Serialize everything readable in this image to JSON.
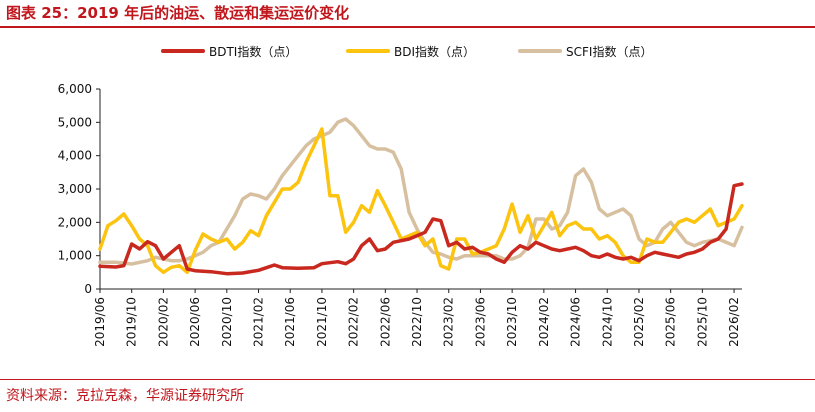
{
  "header": {
    "title": "图表 25：2019 年后的油运、散运和集运运价变化"
  },
  "footer": {
    "source": "资料来源：克拉克森，华源证券研究所"
  },
  "colors": {
    "accent": "#c0161c"
  },
  "chart_data": {
    "type": "line",
    "title": "",
    "xlabel": "",
    "ylabel": "",
    "ylim": [
      0,
      6000
    ],
    "y_ticks": [
      "0",
      "1,000",
      "2,000",
      "3,000",
      "4,000",
      "5,000",
      "6,000"
    ],
    "y_tick_values": [
      0,
      1000,
      2000,
      3000,
      4000,
      5000,
      6000
    ],
    "x_ticks": [
      "2019/06",
      "2019/10",
      "2020/02",
      "2020/06",
      "2020/10",
      "2021/02",
      "2021/06",
      "2021/10",
      "2022/02",
      "2022/06",
      "2022/10",
      "2023/02",
      "2023/06",
      "2023/10",
      "2024/02",
      "2024/06",
      "2024/10",
      "2025/02",
      "2025/06",
      "2025/10",
      "2026/02"
    ],
    "x_start": "2019/06",
    "x_end": "2026/03",
    "grid": false,
    "legend": "top",
    "series": [
      {
        "name": "BDTI指数（点）",
        "color": "#c8281e",
        "points": [
          [
            "2019/06",
            680
          ],
          [
            "2019/08",
            660
          ],
          [
            "2019/09",
            700
          ],
          [
            "2019/10",
            1350
          ],
          [
            "2019/11",
            1200
          ],
          [
            "2019/12",
            1420
          ],
          [
            "2020/01",
            1300
          ],
          [
            "2020/02",
            900
          ],
          [
            "2020/03",
            1100
          ],
          [
            "2020/04",
            1300
          ],
          [
            "2020/05",
            600
          ],
          [
            "2020/06",
            550
          ],
          [
            "2020/08",
            520
          ],
          [
            "2020/10",
            460
          ],
          [
            "2020/12",
            480
          ],
          [
            "2021/02",
            560
          ],
          [
            "2021/03",
            640
          ],
          [
            "2021/04",
            720
          ],
          [
            "2021/05",
            640
          ],
          [
            "2021/07",
            620
          ],
          [
            "2021/09",
            640
          ],
          [
            "2021/10",
            760
          ],
          [
            "2021/12",
            820
          ],
          [
            "2022/01",
            760
          ],
          [
            "2022/02",
            900
          ],
          [
            "2022/03",
            1300
          ],
          [
            "2022/04",
            1500
          ],
          [
            "2022/05",
            1150
          ],
          [
            "2022/06",
            1200
          ],
          [
            "2022/07",
            1400
          ],
          [
            "2022/09",
            1500
          ],
          [
            "2022/10",
            1600
          ],
          [
            "2022/11",
            1700
          ],
          [
            "2022/12",
            2100
          ],
          [
            "2023/01",
            2050
          ],
          [
            "2023/02",
            1300
          ],
          [
            "2023/03",
            1400
          ],
          [
            "2023/04",
            1200
          ],
          [
            "2023/05",
            1250
          ],
          [
            "2023/06",
            1100
          ],
          [
            "2023/07",
            1050
          ],
          [
            "2023/08",
            900
          ],
          [
            "2023/09",
            800
          ],
          [
            "2023/10",
            1100
          ],
          [
            "2023/11",
            1300
          ],
          [
            "2023/12",
            1200
          ],
          [
            "2024/01",
            1400
          ],
          [
            "2024/02",
            1300
          ],
          [
            "2024/03",
            1200
          ],
          [
            "2024/04",
            1150
          ],
          [
            "2024/05",
            1200
          ],
          [
            "2024/06",
            1250
          ],
          [
            "2024/07",
            1150
          ],
          [
            "2024/08",
            1000
          ],
          [
            "2024/09",
            950
          ],
          [
            "2024/10",
            1050
          ],
          [
            "2024/11",
            950
          ],
          [
            "2024/12",
            900
          ],
          [
            "2025/01",
            950
          ],
          [
            "2025/02",
            850
          ],
          [
            "2025/03",
            1000
          ],
          [
            "2025/04",
            1100
          ],
          [
            "2025/05",
            1050
          ],
          [
            "2025/06",
            1000
          ],
          [
            "2025/07",
            950
          ],
          [
            "2025/08",
            1050
          ],
          [
            "2025/09",
            1100
          ],
          [
            "2025/10",
            1200
          ],
          [
            "2025/11",
            1400
          ],
          [
            "2025/12",
            1500
          ],
          [
            "2026/01",
            1800
          ],
          [
            "2026/02",
            3100
          ],
          [
            "2026/03",
            3150
          ]
        ]
      },
      {
        "name": "BDI指数（点）",
        "color": "#fcc30f",
        "points": [
          [
            "2019/06",
            1200
          ],
          [
            "2019/07",
            1900
          ],
          [
            "2019/08",
            2050
          ],
          [
            "2019/09",
            2250
          ],
          [
            "2019/10",
            1900
          ],
          [
            "2019/11",
            1500
          ],
          [
            "2019/12",
            1300
          ],
          [
            "2020/01",
            700
          ],
          [
            "2020/02",
            500
          ],
          [
            "2020/03",
            650
          ],
          [
            "2020/04",
            700
          ],
          [
            "2020/05",
            500
          ],
          [
            "2020/06",
            1150
          ],
          [
            "2020/07",
            1650
          ],
          [
            "2020/08",
            1500
          ],
          [
            "2020/09",
            1400
          ],
          [
            "2020/10",
            1500
          ],
          [
            "2020/11",
            1200
          ],
          [
            "2020/12",
            1400
          ],
          [
            "2021/01",
            1750
          ],
          [
            "2021/02",
            1600
          ],
          [
            "2021/03",
            2200
          ],
          [
            "2021/04",
            2600
          ],
          [
            "2021/05",
            3000
          ],
          [
            "2021/06",
            3000
          ],
          [
            "2021/07",
            3200
          ],
          [
            "2021/08",
            3800
          ],
          [
            "2021/09",
            4300
          ],
          [
            "2021/10",
            4800
          ],
          [
            "2021/11",
            2800
          ],
          [
            "2021/12",
            2800
          ],
          [
            "2022/01",
            1700
          ],
          [
            "2022/02",
            2000
          ],
          [
            "2022/03",
            2500
          ],
          [
            "2022/04",
            2300
          ],
          [
            "2022/05",
            2950
          ],
          [
            "2022/06",
            2500
          ],
          [
            "2022/07",
            2000
          ],
          [
            "2022/08",
            1500
          ],
          [
            "2022/09",
            1600
          ],
          [
            "2022/10",
            1700
          ],
          [
            "2022/11",
            1300
          ],
          [
            "2022/12",
            1500
          ],
          [
            "2023/01",
            700
          ],
          [
            "2023/02",
            600
          ],
          [
            "2023/03",
            1500
          ],
          [
            "2023/04",
            1500
          ],
          [
            "2023/05",
            1050
          ],
          [
            "2023/06",
            1100
          ],
          [
            "2023/07",
            1200
          ],
          [
            "2023/08",
            1300
          ],
          [
            "2023/09",
            1800
          ],
          [
            "2023/10",
            2550
          ],
          [
            "2023/11",
            1700
          ],
          [
            "2023/12",
            2200
          ],
          [
            "2024/01",
            1500
          ],
          [
            "2024/02",
            1900
          ],
          [
            "2024/03",
            2300
          ],
          [
            "2024/04",
            1600
          ],
          [
            "2024/05",
            1900
          ],
          [
            "2024/06",
            2000
          ],
          [
            "2024/07",
            1800
          ],
          [
            "2024/08",
            1800
          ],
          [
            "2024/09",
            1500
          ],
          [
            "2024/10",
            1600
          ],
          [
            "2024/11",
            1400
          ],
          [
            "2024/12",
            1000
          ],
          [
            "2025/01",
            800
          ],
          [
            "2025/02",
            800
          ],
          [
            "2025/03",
            1500
          ],
          [
            "2025/04",
            1400
          ],
          [
            "2025/05",
            1400
          ],
          [
            "2025/06",
            1700
          ],
          [
            "2025/07",
            2000
          ],
          [
            "2025/08",
            2100
          ],
          [
            "2025/09",
            2000
          ],
          [
            "2025/10",
            2200
          ],
          [
            "2025/11",
            2400
          ],
          [
            "2025/12",
            1900
          ],
          [
            "2026/01",
            2000
          ],
          [
            "2026/02",
            2100
          ],
          [
            "2026/03",
            2500
          ]
        ]
      },
      {
        "name": "SCFI指数（点）",
        "color": "#d7c09f",
        "points": [
          [
            "2019/06",
            800
          ],
          [
            "2019/08",
            800
          ],
          [
            "2019/10",
            750
          ],
          [
            "2019/12",
            850
          ],
          [
            "2020/01",
            950
          ],
          [
            "2020/02",
            900
          ],
          [
            "2020/03",
            850
          ],
          [
            "2020/04",
            850
          ],
          [
            "2020/05",
            900
          ],
          [
            "2020/06",
            1000
          ],
          [
            "2020/07",
            1100
          ],
          [
            "2020/08",
            1300
          ],
          [
            "2020/09",
            1400
          ],
          [
            "2020/10",
            1800
          ],
          [
            "2020/11",
            2200
          ],
          [
            "2020/12",
            2700
          ],
          [
            "2021/01",
            2850
          ],
          [
            "2021/02",
            2800
          ],
          [
            "2021/03",
            2700
          ],
          [
            "2021/04",
            3000
          ],
          [
            "2021/05",
            3400
          ],
          [
            "2021/06",
            3700
          ],
          [
            "2021/07",
            4000
          ],
          [
            "2021/08",
            4300
          ],
          [
            "2021/09",
            4500
          ],
          [
            "2021/10",
            4600
          ],
          [
            "2021/11",
            4700
          ],
          [
            "2021/12",
            5000
          ],
          [
            "2022/01",
            5100
          ],
          [
            "2022/02",
            4900
          ],
          [
            "2022/03",
            4600
          ],
          [
            "2022/04",
            4300
          ],
          [
            "2022/05",
            4200
          ],
          [
            "2022/06",
            4200
          ],
          [
            "2022/07",
            4100
          ],
          [
            "2022/08",
            3600
          ],
          [
            "2022/09",
            2300
          ],
          [
            "2022/10",
            1800
          ],
          [
            "2022/11",
            1400
          ],
          [
            "2022/12",
            1100
          ],
          [
            "2023/01",
            1050
          ],
          [
            "2023/02",
            950
          ],
          [
            "2023/03",
            900
          ],
          [
            "2023/04",
            1000
          ],
          [
            "2023/05",
            1000
          ],
          [
            "2023/06",
            1000
          ],
          [
            "2023/07",
            1000
          ],
          [
            "2023/08",
            1000
          ],
          [
            "2023/09",
            900
          ],
          [
            "2023/10",
            900
          ],
          [
            "2023/11",
            1000
          ],
          [
            "2023/12",
            1250
          ],
          [
            "2024/01",
            2100
          ],
          [
            "2024/02",
            2100
          ],
          [
            "2024/03",
            1800
          ],
          [
            "2024/04",
            1900
          ],
          [
            "2024/05",
            2300
          ],
          [
            "2024/06",
            3400
          ],
          [
            "2024/07",
            3600
          ],
          [
            "2024/08",
            3200
          ],
          [
            "2024/09",
            2400
          ],
          [
            "2024/10",
            2200
          ],
          [
            "2024/11",
            2300
          ],
          [
            "2024/12",
            2400
          ],
          [
            "2025/01",
            2200
          ],
          [
            "2025/02",
            1500
          ],
          [
            "2025/03",
            1300
          ],
          [
            "2025/04",
            1400
          ],
          [
            "2025/05",
            1800
          ],
          [
            "2025/06",
            2000
          ],
          [
            "2025/07",
            1700
          ],
          [
            "2025/08",
            1400
          ],
          [
            "2025/09",
            1300
          ],
          [
            "2025/10",
            1400
          ],
          [
            "2025/11",
            1450
          ],
          [
            "2025/12",
            1500
          ],
          [
            "2026/01",
            1400
          ],
          [
            "2026/02",
            1300
          ],
          [
            "2026/03",
            1850
          ]
        ]
      }
    ]
  }
}
